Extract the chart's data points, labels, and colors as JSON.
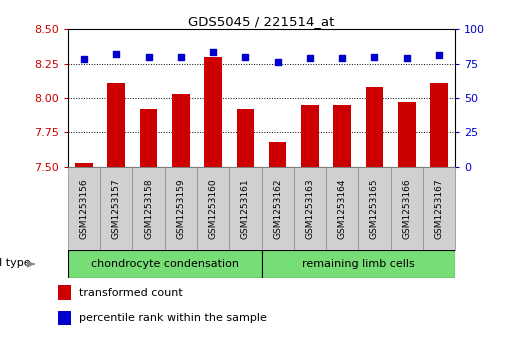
{
  "title": "GDS5045 / 221514_at",
  "samples": [
    "GSM1253156",
    "GSM1253157",
    "GSM1253158",
    "GSM1253159",
    "GSM1253160",
    "GSM1253161",
    "GSM1253162",
    "GSM1253163",
    "GSM1253164",
    "GSM1253165",
    "GSM1253166",
    "GSM1253167"
  ],
  "transformed_counts": [
    7.53,
    8.11,
    7.92,
    8.03,
    8.3,
    7.92,
    7.68,
    7.95,
    7.95,
    8.08,
    7.97,
    8.11
  ],
  "percentile_ranks": [
    78,
    82,
    80,
    80,
    83,
    80,
    76,
    79,
    79,
    80,
    79,
    81
  ],
  "ylim_left": [
    7.5,
    8.5
  ],
  "ylim_right": [
    0,
    100
  ],
  "yticks_left": [
    7.5,
    7.75,
    8.0,
    8.25,
    8.5
  ],
  "yticks_right": [
    0,
    25,
    50,
    75,
    100
  ],
  "bar_color": "#cc0000",
  "dot_color": "#0000cc",
  "cell_types": [
    {
      "label": "chondrocyte condensation",
      "start": 0,
      "end": 6,
      "color": "#77dd77"
    },
    {
      "label": "remaining limb cells",
      "start": 6,
      "end": 12,
      "color": "#77dd77"
    }
  ],
  "cell_type_label": "cell type",
  "legend_bar_label": "transformed count",
  "legend_dot_label": "percentile rank within the sample",
  "left_axis_color": "#cc0000",
  "right_axis_color": "#0000cc",
  "sample_box_color": "#d0d0d0",
  "sample_box_border": "#888888"
}
